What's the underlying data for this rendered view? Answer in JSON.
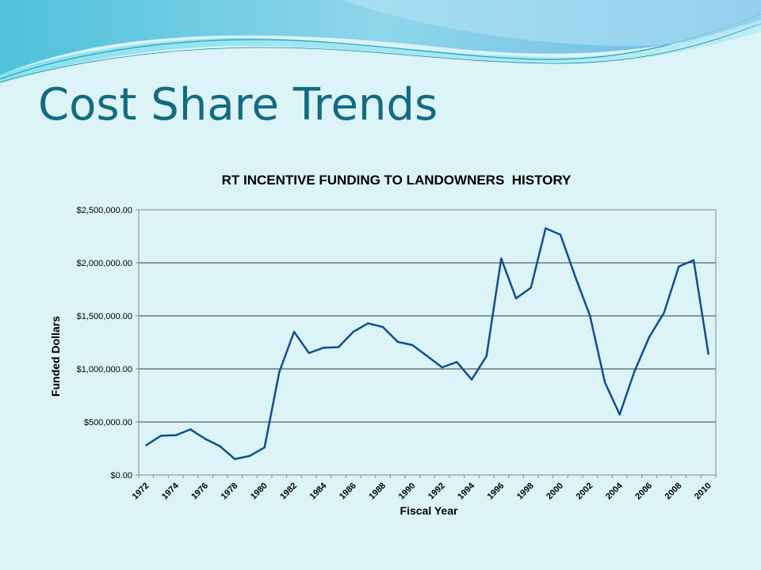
{
  "slide": {
    "title": "Cost Share Trends"
  },
  "chart_data": {
    "type": "line",
    "title": "RT INCENTIVE FUNDING TO LANDOWNERS  HISTORY",
    "xlabel": "Fiscal Year",
    "ylabel": "Funded Dollars",
    "ylim": [
      0,
      2500000
    ],
    "xlim": [
      1971.5,
      2010.5
    ],
    "y_ticks": [
      "$0.00",
      "$500,000.00",
      "$1,000,000.00",
      "$1,500,000.00",
      "$2,000,000.00",
      "$2,500,000.00"
    ],
    "x_ticks": [
      "1972",
      "1974",
      "1976",
      "1978",
      "1980",
      "1982",
      "1984",
      "1986",
      "1988",
      "1990",
      "1992",
      "1994",
      "1996",
      "1998",
      "2000",
      "2002",
      "2004",
      "2006",
      "2008",
      "2010"
    ],
    "grid": true,
    "legend": "none",
    "line_color": "#0f4f8f",
    "series": [
      {
        "x": [
          1972,
          1973,
          1974,
          1975,
          1976,
          1977,
          1978,
          1979,
          1980,
          1981,
          1982,
          1983,
          1984,
          1985,
          1986,
          1987,
          1988,
          1989,
          1990,
          1991,
          1992,
          1993,
          1994,
          1995,
          1996,
          1997,
          1998,
          1999,
          2000,
          2001,
          2002,
          2003,
          2004,
          2005,
          2006,
          2007,
          2008,
          2009,
          2010
        ],
        "values": [
          280000,
          370000,
          375000,
          430000,
          340000,
          270000,
          150000,
          180000,
          260000,
          970000,
          1350000,
          1150000,
          1200000,
          1205000,
          1350000,
          1430000,
          1395000,
          1255000,
          1225000,
          1120000,
          1015000,
          1065000,
          900000,
          1120000,
          2040000,
          1665000,
          1765000,
          2325000,
          2265000,
          1870000,
          1500000,
          875000,
          570000,
          975000,
          1300000,
          1530000,
          1965000,
          2025000,
          1140000
        ]
      }
    ]
  }
}
